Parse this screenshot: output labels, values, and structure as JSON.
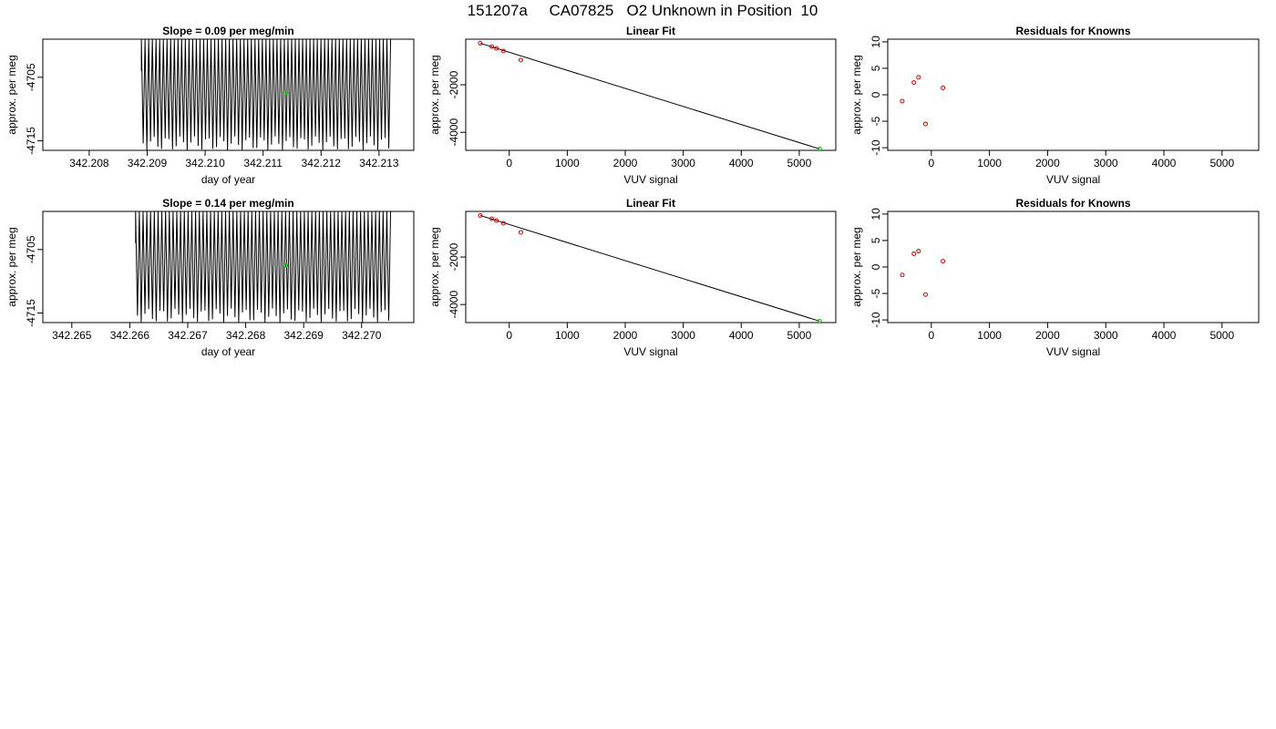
{
  "figure": {
    "title": "151207a     CA07825   O2 Unknown in Position  10"
  },
  "colors": {
    "known_point": "#cc0000",
    "unknown_point": "#00cc00",
    "line": "#000000"
  },
  "chart_data": [
    {
      "type": "line",
      "title": "Slope =  0.09  per meg/min",
      "xlabel": "day of year",
      "ylabel": "approx. per meg",
      "xlim": [
        342.2072,
        342.2136
      ],
      "ylim": [
        -4716.5,
        -4699.0
      ],
      "xticks": [
        "342.208",
        "342.209",
        "342.210",
        "342.211",
        "342.212",
        "342.213"
      ],
      "yticks": [
        "-4715",
        "-4705"
      ],
      "series": [
        {
          "x_start": 342.2089,
          "x_end": 342.2132,
          "n_cycles": 68,
          "y_max": -4699.0,
          "y_min_range": [
            -4714.3,
            -4716.5
          ],
          "entry_y": -4704.0
        }
      ],
      "mean_point": {
        "x": 342.2114,
        "y": -4707.5
      }
    },
    {
      "type": "scatter",
      "title": "Linear Fit",
      "xlabel": "VUV signal",
      "ylabel": "approx. per meg",
      "xlim": [
        -750,
        5630
      ],
      "ylim": [
        -4760,
        -80
      ],
      "xticks": [
        "0",
        "1000",
        "2000",
        "3000",
        "4000",
        "5000"
      ],
      "yticks": [
        "-2000",
        "-4000"
      ],
      "knowns": [
        {
          "x": -500,
          "y": -250
        },
        {
          "x": -300,
          "y": -390
        },
        {
          "x": -220,
          "y": -470
        },
        {
          "x": -100,
          "y": -580
        },
        {
          "x": 200,
          "y": -960
        }
      ],
      "unknown": {
        "x": 5350,
        "y": -4700
      },
      "fit_line": {
        "x": [
          -500,
          5350
        ],
        "y": [
          -250,
          -4700
        ]
      }
    },
    {
      "type": "scatter",
      "title": "Residuals for Knowns",
      "xlabel": "VUV signal",
      "ylabel": "approx. per meg",
      "xlim": [
        -750,
        5630
      ],
      "ylim": [
        -10.5,
        10.5
      ],
      "xticks": [
        "0",
        "1000",
        "2000",
        "3000",
        "4000",
        "5000"
      ],
      "yticks": [
        "-10",
        "-5",
        "0",
        "5",
        "10"
      ],
      "residuals": [
        {
          "x": -500,
          "y": -1.2
        },
        {
          "x": -300,
          "y": 2.3
        },
        {
          "x": -220,
          "y": 3.3
        },
        {
          "x": -100,
          "y": -5.5
        },
        {
          "x": 200,
          "y": 1.3
        }
      ]
    },
    {
      "type": "line",
      "title": "Slope =  0.14  per meg/min",
      "xlabel": "day of year",
      "ylabel": "approx. per meg",
      "xlim": [
        342.2645,
        342.2709
      ],
      "ylim": [
        -4716.5,
        -4699.0
      ],
      "xticks": [
        "342.265",
        "342.266",
        "342.267",
        "342.268",
        "342.269",
        "342.270"
      ],
      "yticks": [
        "-4715",
        "-4705"
      ],
      "series": [
        {
          "x_start": 342.2661,
          "x_end": 342.2705,
          "n_cycles": 68,
          "y_max": -4699.0,
          "y_min_range": [
            -4714.3,
            -4716.5
          ],
          "entry_y": -4704.0
        }
      ],
      "mean_point": {
        "x": 342.2687,
        "y": -4707.5
      }
    },
    {
      "type": "scatter",
      "title": "Linear Fit",
      "xlabel": "VUV signal",
      "ylabel": "approx. per meg",
      "xlim": [
        -750,
        5630
      ],
      "ylim": [
        -4760,
        -80
      ],
      "xticks": [
        "0",
        "1000",
        "2000",
        "3000",
        "4000",
        "5000"
      ],
      "yticks": [
        "-2000",
        "-4000"
      ],
      "knowns": [
        {
          "x": -500,
          "y": -250
        },
        {
          "x": -300,
          "y": -390
        },
        {
          "x": -220,
          "y": -470
        },
        {
          "x": -100,
          "y": -580
        },
        {
          "x": 200,
          "y": -960
        }
      ],
      "unknown": {
        "x": 5350,
        "y": -4700
      },
      "fit_line": {
        "x": [
          -500,
          5350
        ],
        "y": [
          -250,
          -4700
        ]
      }
    },
    {
      "type": "scatter",
      "title": "Residuals for Knowns",
      "xlabel": "VUV signal",
      "ylabel": "approx. per meg",
      "xlim": [
        -750,
        5630
      ],
      "ylim": [
        -10.5,
        10.5
      ],
      "xticks": [
        "0",
        "1000",
        "2000",
        "3000",
        "4000",
        "5000"
      ],
      "yticks": [
        "-10",
        "-5",
        "0",
        "5",
        "10"
      ],
      "residuals": [
        {
          "x": -500,
          "y": -1.5
        },
        {
          "x": -300,
          "y": 2.5
        },
        {
          "x": -220,
          "y": 3.0
        },
        {
          "x": -100,
          "y": -5.2
        },
        {
          "x": 200,
          "y": 1.1
        }
      ]
    }
  ]
}
